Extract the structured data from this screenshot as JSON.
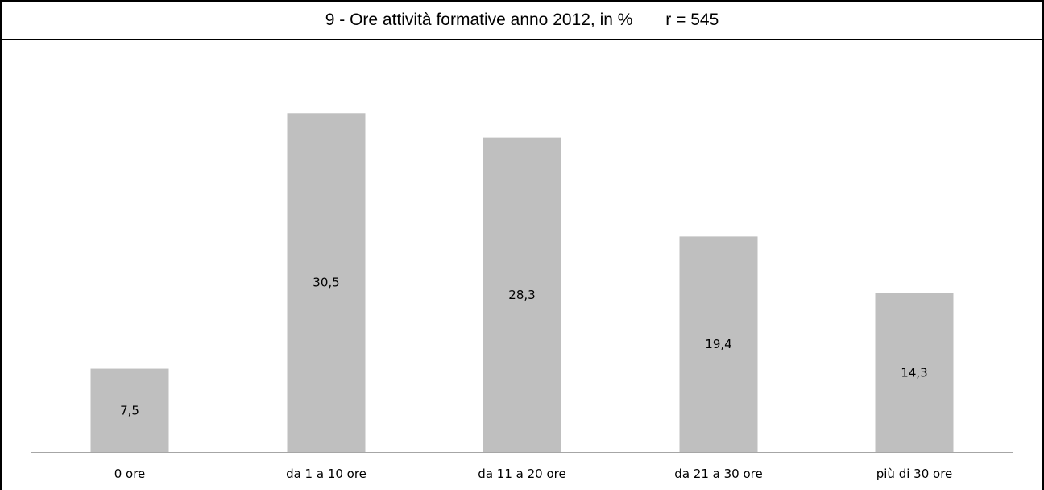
{
  "title": "9 - Ore attività formative anno 2012, in %",
  "subtitle": "r = 545",
  "chart_data": {
    "type": "bar",
    "title": "9 - Ore attività formative anno 2012, in %",
    "subtitle": "r = 545",
    "categories": [
      "0 ore",
      "da 1 a 10 ore",
      "da 11 a 20 ore",
      "da 21 a 30 ore",
      "più di 30 ore"
    ],
    "values": [
      7.5,
      30.5,
      28.3,
      19.4,
      14.3
    ],
    "value_labels": [
      "7,5",
      "30,5",
      "28,3",
      "19,4",
      "14,3"
    ],
    "ylim": [
      0,
      34
    ],
    "grid": false,
    "legend": "none",
    "bar_color": "#bfbfbf",
    "axis_color": "#a6a6a6"
  }
}
